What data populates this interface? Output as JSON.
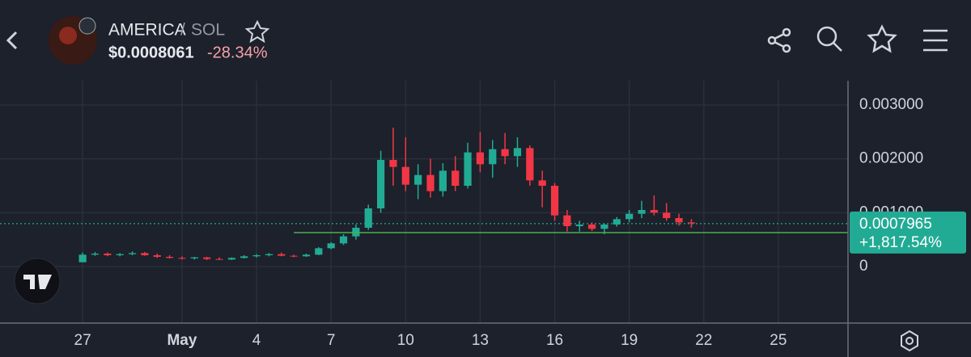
{
  "header": {
    "pair_base": "AMERICA",
    "pair_separator": "/",
    "pair_quote": "SOL",
    "price": "$0.0008061",
    "change": "-28.34%"
  },
  "chart_data": {
    "type": "candlestick",
    "up_color": "#22ab94",
    "down_color": "#f23645",
    "grid": true,
    "x": [
      "04-27 00",
      "04-27 12",
      "04-28 00",
      "04-28 12",
      "04-29 00",
      "04-29 12",
      "04-30 00",
      "04-30 12",
      "05-01 00",
      "05-01 12",
      "05-02 00",
      "05-02 12",
      "05-03 00",
      "05-03 12",
      "05-04 00",
      "05-04 12",
      "05-05 00",
      "05-05 12",
      "05-06 00",
      "05-06 12",
      "05-07 00",
      "05-07 12",
      "05-08 00",
      "05-08 12",
      "05-09 00",
      "05-09 12",
      "05-10 00",
      "05-10 12",
      "05-11 00",
      "05-11 12",
      "05-12 00",
      "05-12 12",
      "05-13 00",
      "05-13 12",
      "05-14 00",
      "05-14 12",
      "05-15 00",
      "05-15 12",
      "05-16 00",
      "05-16 12",
      "05-17 00",
      "05-17 12",
      "05-18 00",
      "05-18 12",
      "05-19 00",
      "05-19 12",
      "05-20 00",
      "05-20 12",
      "05-21 00",
      "05-21 12"
    ],
    "open": [
      8e-05,
      0.00022,
      0.00024,
      0.00021,
      0.00023,
      0.00025,
      0.00021,
      0.00018,
      0.00016,
      0.00015,
      0.00017,
      0.00014,
      0.00013,
      0.00016,
      0.00019,
      0.00021,
      0.00023,
      0.0002,
      0.00019,
      0.00022,
      0.00034,
      0.00043,
      0.00056,
      0.00072,
      0.00108,
      0.00198,
      0.00185,
      0.00152,
      0.0017,
      0.0014,
      0.00178,
      0.0015,
      0.00212,
      0.0019,
      0.00218,
      0.00205,
      0.0022,
      0.0016,
      0.0015,
      0.00095,
      0.00075,
      0.00078,
      0.0007,
      0.00078,
      0.00088,
      0.00098,
      0.00105,
      0.001,
      0.0009,
      0.00082
    ],
    "high": [
      0.00026,
      0.00027,
      0.00026,
      0.00025,
      0.00028,
      0.00027,
      0.00024,
      0.00021,
      0.00019,
      0.00018,
      0.00018,
      0.00017,
      0.00017,
      0.00021,
      0.00023,
      0.00025,
      0.00026,
      0.00022,
      0.00024,
      0.00036,
      0.00045,
      0.0006,
      0.00078,
      0.00115,
      0.00215,
      0.00258,
      0.0024,
      0.0019,
      0.002,
      0.00192,
      0.00205,
      0.0023,
      0.0025,
      0.00235,
      0.00248,
      0.0024,
      0.00225,
      0.00178,
      0.00155,
      0.00105,
      0.00085,
      0.00082,
      0.0008,
      0.00092,
      0.00105,
      0.00122,
      0.00132,
      0.00118,
      0.00098,
      0.00088
    ],
    "low": [
      8e-05,
      0.0002,
      0.00019,
      0.00019,
      0.00021,
      0.0002,
      0.00016,
      0.00015,
      0.00013,
      0.00013,
      0.00012,
      0.00012,
      0.00012,
      0.00015,
      0.00017,
      0.00019,
      0.00019,
      0.00017,
      0.00018,
      0.00021,
      0.00032,
      0.0004,
      0.0005,
      0.00068,
      0.001,
      0.0015,
      0.0014,
      0.00125,
      0.00128,
      0.0013,
      0.0014,
      0.00145,
      0.00175,
      0.00165,
      0.0019,
      0.00185,
      0.0015,
      0.0011,
      0.00085,
      0.00065,
      0.00065,
      0.00066,
      0.0006,
      0.00074,
      0.00082,
      0.0009,
      0.00095,
      0.00085,
      0.00076,
      0.00072
    ],
    "close": [
      0.00022,
      0.00024,
      0.00021,
      0.00023,
      0.00025,
      0.00021,
      0.00018,
      0.00016,
      0.00015,
      0.00017,
      0.00014,
      0.00013,
      0.00016,
      0.00019,
      0.00021,
      0.00023,
      0.0002,
      0.00019,
      0.00022,
      0.00034,
      0.00043,
      0.00056,
      0.00072,
      0.00108,
      0.00198,
      0.00185,
      0.00152,
      0.0017,
      0.0014,
      0.00178,
      0.0015,
      0.00212,
      0.0019,
      0.00218,
      0.00205,
      0.0022,
      0.0016,
      0.0015,
      0.00095,
      0.00075,
      0.00078,
      0.0007,
      0.00078,
      0.00088,
      0.00098,
      0.00105,
      0.001,
      0.0009,
      0.00082,
      0.0008
    ],
    "xlim": [
      "04-24",
      "05-28"
    ],
    "xticks": [
      {
        "value": "04-27",
        "label": "27"
      },
      {
        "value": "05-01",
        "label": "May"
      },
      {
        "value": "05-04",
        "label": "4"
      },
      {
        "value": "05-07",
        "label": "7"
      },
      {
        "value": "05-10",
        "label": "10"
      },
      {
        "value": "05-13",
        "label": "13"
      },
      {
        "value": "05-16",
        "label": "16"
      },
      {
        "value": "05-19",
        "label": "19"
      },
      {
        "value": "05-22",
        "label": "22"
      },
      {
        "value": "05-25",
        "label": "25"
      }
    ],
    "ylim": [
      -0.00105,
      0.00345
    ],
    "yticks": [
      {
        "value": 0.003,
        "label": "0.003000"
      },
      {
        "value": 0.002,
        "label": "0.002000"
      },
      {
        "value": 0.001,
        "label": "0.001000"
      },
      0
    ],
    "reference_line": {
      "value": 0.00063,
      "start": "05-05 12",
      "color": "#4caf50"
    },
    "last_price": {
      "value": 0.0007965,
      "label": "0.0007965",
      "change": "+1,817.54%"
    }
  }
}
